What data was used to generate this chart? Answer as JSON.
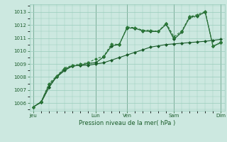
{
  "title": "",
  "xlabel": "Pression niveau de la mer( hPa )",
  "ylabel": "",
  "background_color": "#cce8e0",
  "grid_color": "#99ccbb",
  "line_color_dark": "#1a5c2a",
  "line_color_mid": "#2d7a3a",
  "ylim": [
    1005.4,
    1013.6
  ],
  "yticks": [
    1006,
    1007,
    1008,
    1009,
    1010,
    1011,
    1012,
    1013
  ],
  "day_labels": [
    "Jeu",
    "Lun",
    "Ven",
    "Sam",
    "Dim"
  ],
  "day_positions": [
    0,
    8,
    12,
    18,
    24
  ],
  "series1": [
    1005.7,
    1006.1,
    1007.4,
    1008.0,
    1008.5,
    1008.85,
    1008.9,
    1008.9,
    1009.0,
    1009.1,
    1009.3,
    1009.5,
    1009.7,
    1009.9,
    1010.1,
    1010.3,
    1010.4,
    1010.5,
    1010.55,
    1010.6,
    1010.65,
    1010.7,
    1010.75,
    1010.82,
    1010.9
  ],
  "series2": [
    1005.7,
    1006.05,
    1007.2,
    1008.05,
    1008.6,
    1008.85,
    1008.9,
    1009.05,
    1009.1,
    1009.55,
    1010.35,
    1010.55,
    1011.75,
    1011.75,
    1011.6,
    1011.55,
    1011.55,
    1012.1,
    1011.0,
    1011.5,
    1012.55,
    1012.65,
    1013.0,
    1010.4,
    1010.7
  ],
  "series3": [
    1005.7,
    1006.05,
    1007.2,
    1008.05,
    1008.6,
    1008.85,
    1008.9,
    1009.05,
    1009.1,
    1009.55,
    1010.4,
    1010.5,
    1011.8,
    1011.75,
    1011.55,
    1011.5,
    1011.5,
    1012.05,
    1010.9,
    1011.45,
    1012.6,
    1012.7,
    1013.0,
    1010.35,
    1010.65
  ],
  "series4": [
    1005.7,
    1006.1,
    1007.5,
    1008.1,
    1008.7,
    1008.9,
    1009.0,
    1009.1,
    1009.4,
    1009.6,
    1010.55,
    1010.5,
    1011.85,
    1011.8,
    1011.6,
    1011.6,
    1011.5,
    1012.15,
    1011.1,
    1011.55,
    1012.65,
    1012.8,
    1013.05,
    1010.35,
    1010.65
  ]
}
